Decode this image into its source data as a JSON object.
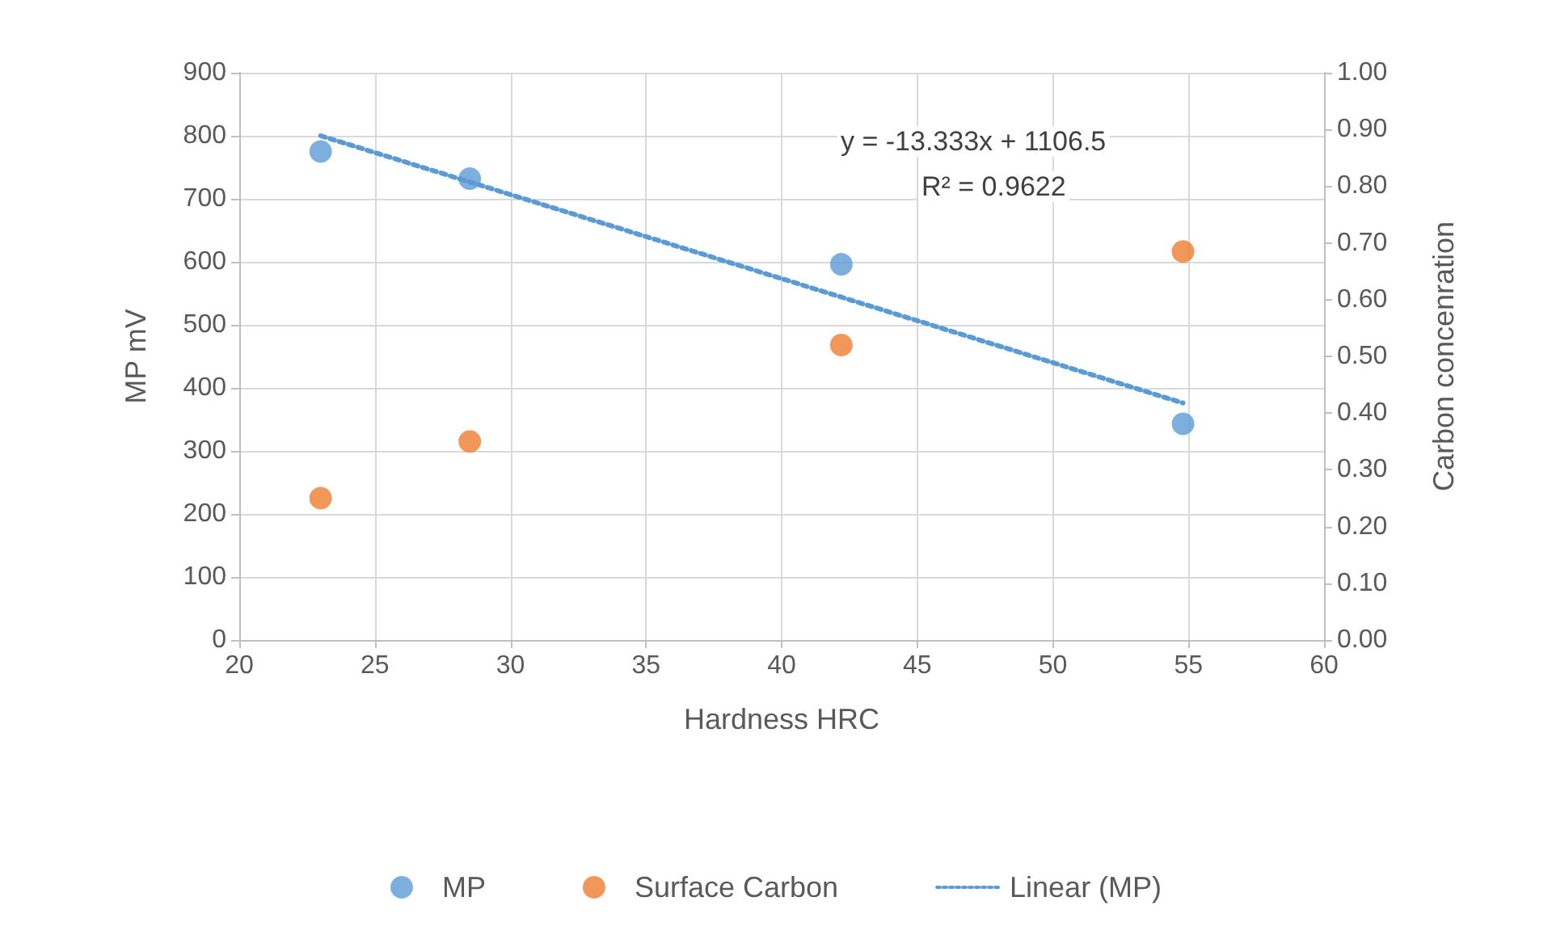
{
  "chart_data": {
    "type": "scatter",
    "xlabel": "Hardness HRC",
    "ylabel": "MP mV",
    "y2label": "Carbon concenration",
    "xlim": [
      20,
      60
    ],
    "xticks": [
      20,
      25,
      30,
      35,
      40,
      45,
      50,
      55,
      60
    ],
    "ylim": [
      0,
      900
    ],
    "yticks": [
      0,
      100,
      200,
      300,
      400,
      500,
      600,
      700,
      800,
      900
    ],
    "y2lim": [
      0,
      1
    ],
    "y2ticks": [
      {
        "value": 0,
        "label": "0.00"
      },
      {
        "value": 0.1,
        "label": "0.10"
      },
      {
        "value": 0.2,
        "label": "0.20"
      },
      {
        "value": 0.3,
        "label": "0.30"
      },
      {
        "value": 0.4,
        "label": "0.40"
      },
      {
        "value": 0.5,
        "label": "0.50"
      },
      {
        "value": 0.6,
        "label": "0.60"
      },
      {
        "value": 0.7,
        "label": "0.70"
      },
      {
        "value": 0.8,
        "label": "0.80"
      },
      {
        "value": 0.9,
        "label": "0.90"
      },
      {
        "value": 1,
        "label": "1.00"
      }
    ],
    "x": [
      23,
      28.5,
      42.2,
      54.8
    ],
    "series": [
      {
        "name": "MP",
        "color": "#5b9bd5",
        "values": [
          775,
          732,
          596,
          343
        ],
        "marker": "circle"
      },
      {
        "name": "Surface Carbon",
        "color": "#ed7d31",
        "values": [
          0.25,
          0.35,
          0.52,
          0.685
        ],
        "axis": "y2",
        "marker": "circle"
      },
      {
        "name": "Linear (MP)",
        "type": "line",
        "color": "#5b9bd5",
        "x": [
          23,
          54.8
        ],
        "values": [
          800,
          376
        ],
        "line_style": "dotted",
        "marker": "none"
      }
    ],
    "annotations": [
      "y = -13.333x + 1106.5",
      "R² = 0.9622"
    ],
    "grid": true,
    "legend": "bottom"
  }
}
